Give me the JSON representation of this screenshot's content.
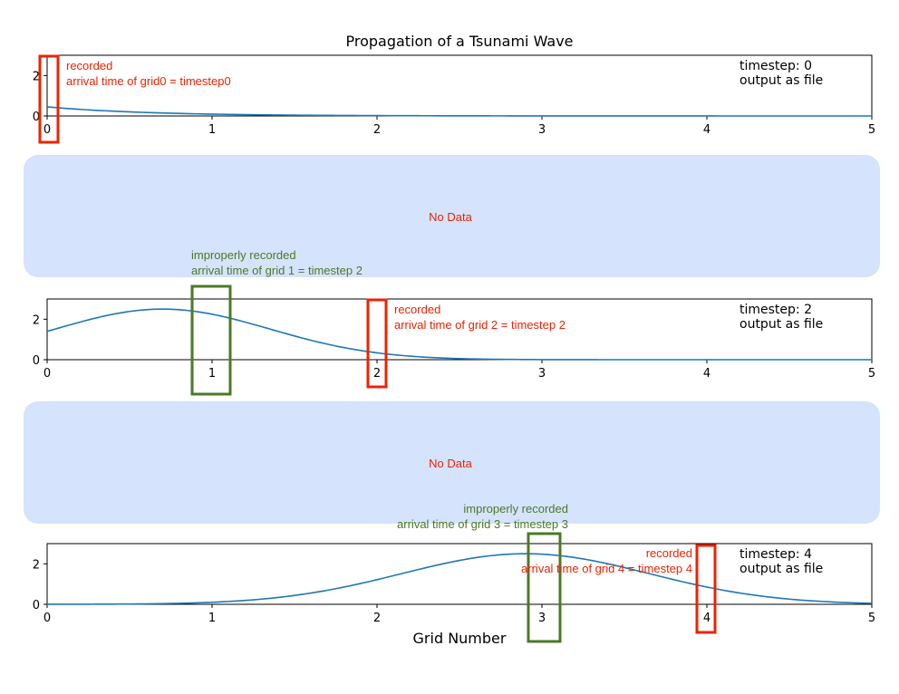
{
  "figure": {
    "title": "Propagation of a Tsunami Wave",
    "xlabel": "Grid Number"
  },
  "colors": {
    "line": "#1f77b4",
    "recorded": "#ee2200",
    "improper": "#4a7a26",
    "nodata_fill": "#d5e3fc",
    "nodata_text": "#ee2200"
  },
  "chart_data": [
    {
      "type": "line",
      "panel": "timestep-0",
      "xlim": [
        0,
        5
      ],
      "ylim": [
        0,
        3
      ],
      "xticks": [
        "0",
        "1",
        "2",
        "3",
        "4",
        "5"
      ],
      "yticks": [
        "0",
        "2"
      ],
      "wave": {
        "formula": "exponential-decay",
        "amplitude": 0.45,
        "decay": 1.6
      },
      "series": [
        {
          "x": [
            0,
            0.5,
            1,
            1.5,
            2,
            3,
            4,
            5
          ],
          "y": [
            0.45,
            0.2,
            0.09,
            0.04,
            0.02,
            0.0,
            0.0,
            0.0
          ]
        }
      ],
      "info": [
        "timestep: 0",
        "output as file"
      ],
      "annotations": [
        {
          "kind": "recorded",
          "grid": 0,
          "lines": [
            "recorded",
            "arrival time of grid0 = timestep0"
          ]
        }
      ]
    },
    {
      "type": "line",
      "panel": "timestep-2",
      "xlim": [
        0,
        5
      ],
      "ylim": [
        0,
        3
      ],
      "xticks": [
        "0",
        "1",
        "2",
        "3",
        "4",
        "5"
      ],
      "yticks": [
        "0",
        "2"
      ],
      "wave": {
        "formula": "gaussian",
        "peak": 2.5,
        "center": 0.7,
        "sigma": 0.65
      },
      "series": [
        {
          "x": [
            0,
            0.7,
            1,
            1.5,
            2,
            3,
            4,
            5
          ],
          "y": [
            1.4,
            2.5,
            2.25,
            1.35,
            0.5,
            0.08,
            0.0,
            0.0
          ]
        }
      ],
      "info": [
        "timestep: 2",
        "output as file"
      ],
      "annotations": [
        {
          "kind": "improper",
          "grid": 1,
          "lines": [
            "improperly recorded",
            "arrival time of grid 1 = timestep 2"
          ]
        },
        {
          "kind": "recorded",
          "grid": 2,
          "lines": [
            "recorded",
            "arrival time of grid 2 = timestep 2"
          ]
        }
      ]
    },
    {
      "type": "line",
      "panel": "timestep-4",
      "xlim": [
        0,
        5
      ],
      "ylim": [
        0,
        3
      ],
      "xticks": [
        "0",
        "1",
        "2",
        "3",
        "4",
        "5"
      ],
      "yticks": [
        "0",
        "2"
      ],
      "wave": {
        "formula": "gaussian",
        "peak": 2.5,
        "center": 2.9,
        "sigma": 0.75
      },
      "series": [
        {
          "x": [
            0,
            1,
            2,
            2.9,
            3.5,
            4,
            5
          ],
          "y": [
            0.05,
            0.15,
            1.0,
            2.5,
            1.6,
            0.7,
            0.1
          ]
        }
      ],
      "info": [
        "timestep: 4",
        "output as file"
      ],
      "annotations": [
        {
          "kind": "improper",
          "grid": 3,
          "lines": [
            "improperly recorded",
            "arrival time of grid 3 = timestep 3"
          ]
        },
        {
          "kind": "recorded",
          "grid": 4,
          "lines": [
            "recorded",
            "arrival time of grid 4 = timestep 4"
          ]
        }
      ]
    }
  ],
  "placeholders": [
    {
      "text": "No Data"
    },
    {
      "text": "No Data"
    }
  ]
}
